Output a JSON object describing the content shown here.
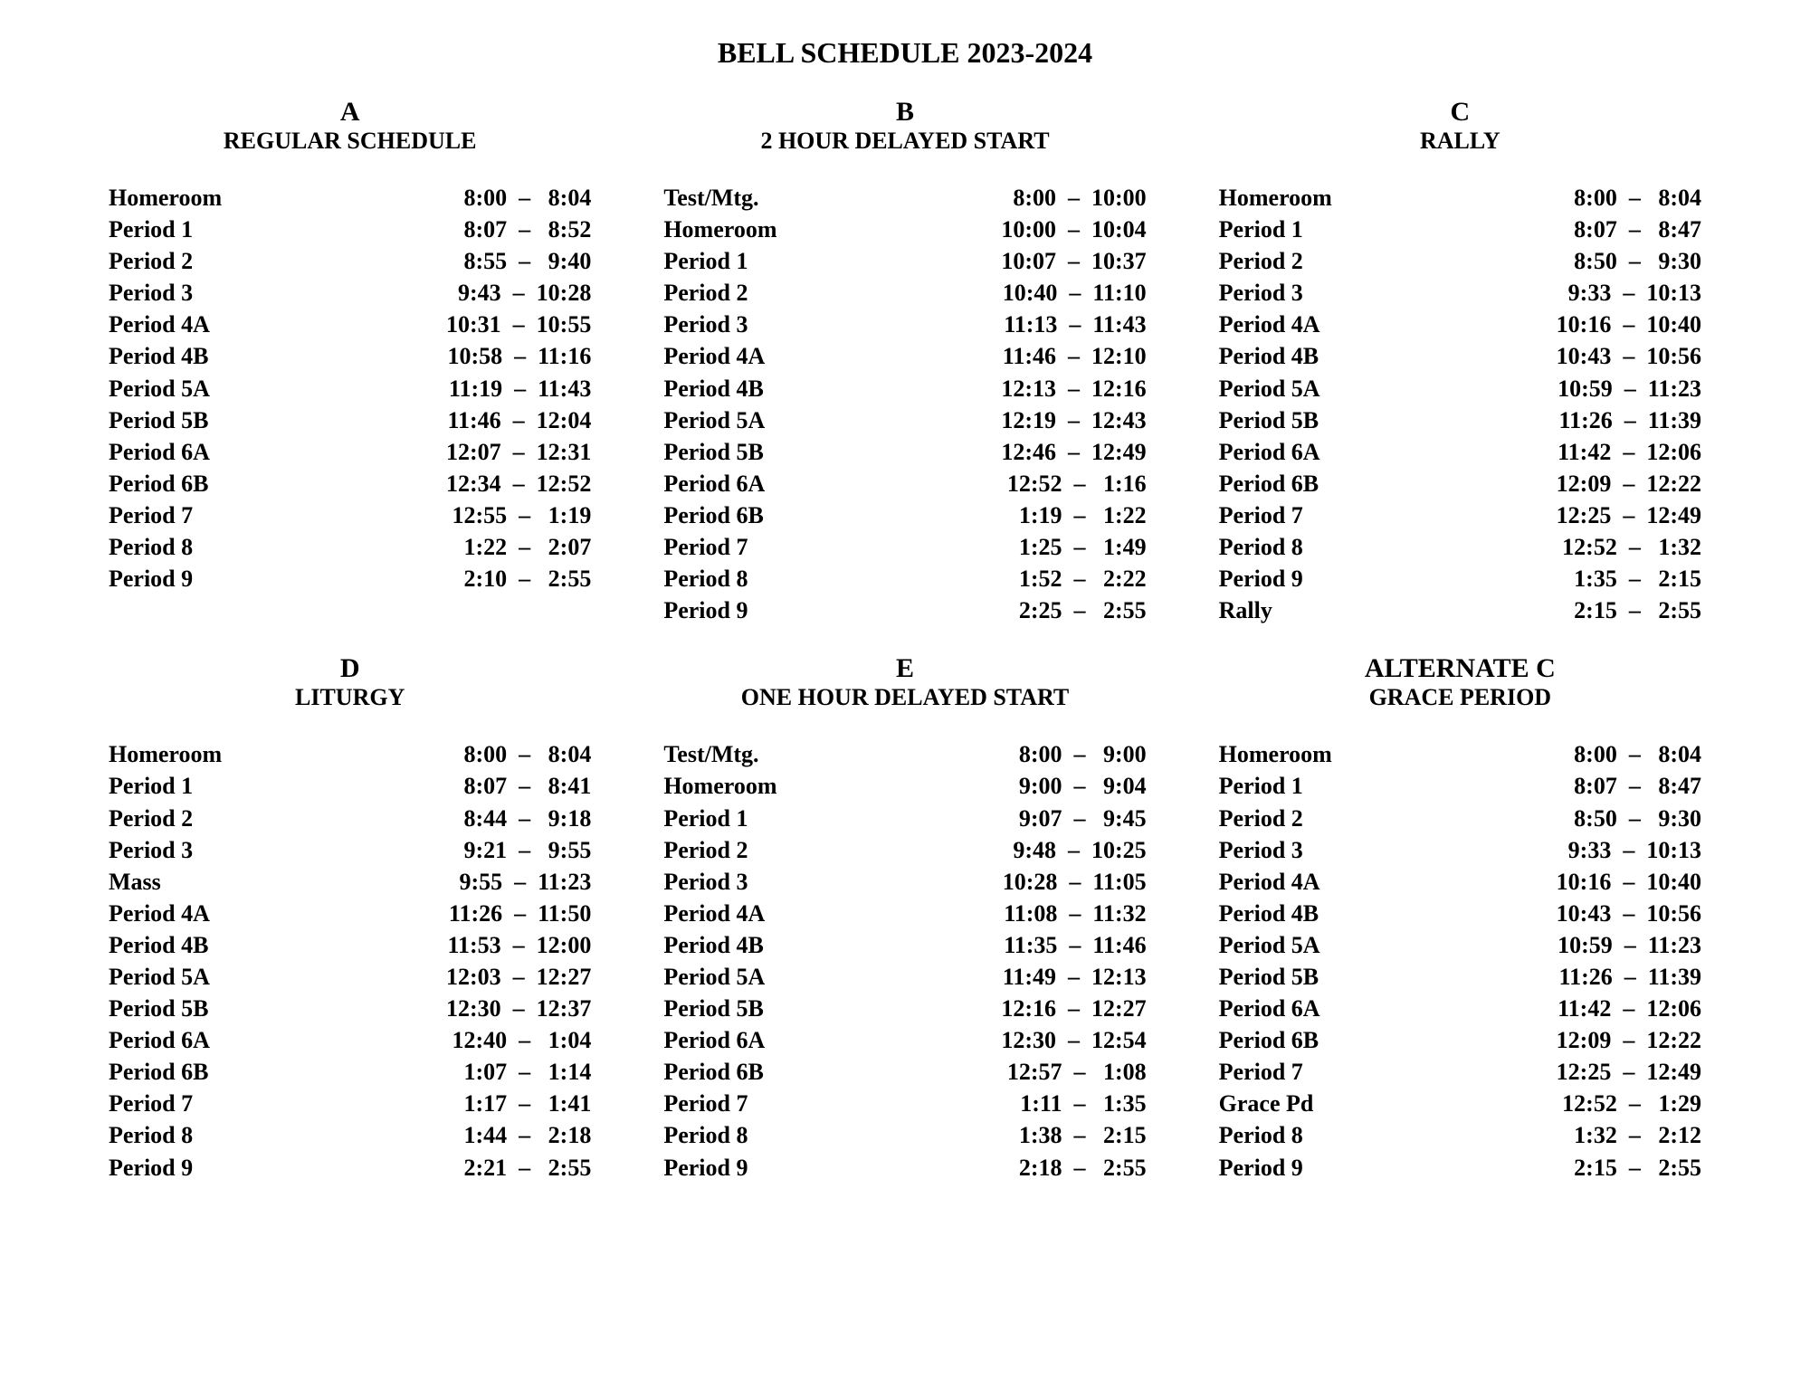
{
  "title": "BELL SCHEDULE 2023-2024",
  "schedules": [
    {
      "letter": "A",
      "name": "REGULAR SCHEDULE",
      "rows": [
        {
          "label": "Homeroom",
          "start": "8:00",
          "end": "8:04"
        },
        {
          "label": "Period 1",
          "start": "8:07",
          "end": "8:52"
        },
        {
          "label": "Period 2",
          "start": "8:55",
          "end": "9:40"
        },
        {
          "label": "Period 3",
          "start": "9:43",
          "end": "10:28"
        },
        {
          "label": "Period 4A",
          "start": "10:31",
          "end": "10:55"
        },
        {
          "label": "Period 4B",
          "start": "10:58",
          "end": "11:16"
        },
        {
          "label": "Period 5A",
          "start": "11:19",
          "end": "11:43"
        },
        {
          "label": "Period 5B",
          "start": "11:46",
          "end": "12:04"
        },
        {
          "label": "Period 6A",
          "start": "12:07",
          "end": "12:31"
        },
        {
          "label": "Period 6B",
          "start": "12:34",
          "end": "12:52"
        },
        {
          "label": "Period 7",
          "start": "12:55",
          "end": "1:19"
        },
        {
          "label": "Period 8",
          "start": "1:22",
          "end": "2:07"
        },
        {
          "label": "Period 9",
          "start": "2:10",
          "end": "2:55"
        }
      ]
    },
    {
      "letter": "B",
      "name": "2 HOUR DELAYED START",
      "rows": [
        {
          "label": "Test/Mtg.",
          "start": "8:00",
          "end": "10:00"
        },
        {
          "label": "Homeroom",
          "start": "10:00",
          "end": "10:04"
        },
        {
          "label": "Period 1",
          "start": "10:07",
          "end": "10:37"
        },
        {
          "label": "Period 2",
          "start": "10:40",
          "end": "11:10"
        },
        {
          "label": "Period 3",
          "start": "11:13",
          "end": "11:43"
        },
        {
          "label": "Period 4A",
          "start": "11:46",
          "end": "12:10"
        },
        {
          "label": "Period 4B",
          "start": "12:13",
          "end": "12:16"
        },
        {
          "label": "Period 5A",
          "start": "12:19",
          "end": "12:43"
        },
        {
          "label": "Period 5B",
          "start": "12:46",
          "end": "12:49"
        },
        {
          "label": "Period 6A",
          "start": "12:52",
          "end": "1:16"
        },
        {
          "label": "Period 6B",
          "start": "1:19",
          "end": "1:22"
        },
        {
          "label": "Period 7",
          "start": "1:25",
          "end": "1:49"
        },
        {
          "label": "Period 8",
          "start": "1:52",
          "end": "2:22"
        },
        {
          "label": "Period 9",
          "start": "2:25",
          "end": "2:55"
        }
      ]
    },
    {
      "letter": "C",
      "name": "RALLY",
      "rows": [
        {
          "label": "Homeroom",
          "start": "8:00",
          "end": "8:04"
        },
        {
          "label": "Period 1",
          "start": "8:07",
          "end": "8:47"
        },
        {
          "label": "Period 2",
          "start": "8:50",
          "end": "9:30"
        },
        {
          "label": "Period 3",
          "start": "9:33",
          "end": "10:13"
        },
        {
          "label": "Period 4A",
          "start": "10:16",
          "end": "10:40"
        },
        {
          "label": "Period 4B",
          "start": "10:43",
          "end": "10:56"
        },
        {
          "label": "Period 5A",
          "start": "10:59",
          "end": "11:23"
        },
        {
          "label": "Period 5B",
          "start": "11:26",
          "end": "11:39"
        },
        {
          "label": "Period 6A",
          "start": "11:42",
          "end": "12:06"
        },
        {
          "label": "Period 6B",
          "start": "12:09",
          "end": "12:22"
        },
        {
          "label": "Period 7",
          "start": "12:25",
          "end": "12:49"
        },
        {
          "label": "Period 8",
          "start": "12:52",
          "end": "1:32"
        },
        {
          "label": "Period 9",
          "start": "1:35",
          "end": "2:15"
        },
        {
          "label": "Rally",
          "start": "2:15",
          "end": "2:55"
        }
      ]
    },
    {
      "letter": "D",
      "name": "LITURGY",
      "rows": [
        {
          "label": "Homeroom",
          "start": "8:00",
          "end": "8:04"
        },
        {
          "label": "Period 1",
          "start": "8:07",
          "end": "8:41"
        },
        {
          "label": "Period 2",
          "start": "8:44",
          "end": "9:18"
        },
        {
          "label": "Period 3",
          "start": "9:21",
          "end": "9:55"
        },
        {
          "label": "Mass",
          "start": "9:55",
          "end": "11:23"
        },
        {
          "label": "Period 4A",
          "start": "11:26",
          "end": "11:50"
        },
        {
          "label": "Period 4B",
          "start": "11:53",
          "end": "12:00"
        },
        {
          "label": "Period 5A",
          "start": "12:03",
          "end": "12:27"
        },
        {
          "label": "Period 5B",
          "start": "12:30",
          "end": "12:37"
        },
        {
          "label": "Period 6A",
          "start": "12:40",
          "end": "1:04"
        },
        {
          "label": "Period 6B",
          "start": "1:07",
          "end": "1:14"
        },
        {
          "label": "Period 7",
          "start": "1:17",
          "end": "1:41"
        },
        {
          "label": "Period 8",
          "start": "1:44",
          "end": "2:18"
        },
        {
          "label": "Period 9",
          "start": "2:21",
          "end": "2:55"
        }
      ]
    },
    {
      "letter": "E",
      "name": "ONE HOUR DELAYED START",
      "rows": [
        {
          "label": "Test/Mtg.",
          "start": "8:00",
          "end": "9:00"
        },
        {
          "label": "Homeroom",
          "start": "9:00",
          "end": "9:04"
        },
        {
          "label": "Period 1",
          "start": "9:07",
          "end": "9:45"
        },
        {
          "label": "Period 2",
          "start": "9:48",
          "end": "10:25"
        },
        {
          "label": "Period 3",
          "start": "10:28",
          "end": "11:05"
        },
        {
          "label": "Period 4A",
          "start": "11:08",
          "end": "11:32"
        },
        {
          "label": "Period 4B",
          "start": "11:35",
          "end": "11:46"
        },
        {
          "label": "Period 5A",
          "start": "11:49",
          "end": "12:13"
        },
        {
          "label": "Period 5B",
          "start": "12:16",
          "end": "12:27"
        },
        {
          "label": "Period 6A",
          "start": "12:30",
          "end": "12:54"
        },
        {
          "label": "Period 6B",
          "start": "12:57",
          "end": "1:08"
        },
        {
          "label": "Period 7",
          "start": "1:11",
          "end": "1:35"
        },
        {
          "label": "Period 8",
          "start": "1:38",
          "end": "2:15"
        },
        {
          "label": "Period 9",
          "start": "2:18",
          "end": "2:55"
        }
      ]
    },
    {
      "letter": "ALTERNATE C",
      "name": "GRACE PERIOD",
      "rows": [
        {
          "label": "Homeroom",
          "start": "8:00",
          "end": "8:04"
        },
        {
          "label": "Period 1",
          "start": "8:07",
          "end": "8:47"
        },
        {
          "label": "Period 2",
          "start": "8:50",
          "end": "9:30"
        },
        {
          "label": "Period 3",
          "start": "9:33",
          "end": "10:13"
        },
        {
          "label": "Period 4A",
          "start": "10:16",
          "end": "10:40"
        },
        {
          "label": "Period 4B",
          "start": "10:43",
          "end": "10:56"
        },
        {
          "label": "Period 5A",
          "start": "10:59",
          "end": "11:23"
        },
        {
          "label": "Period 5B",
          "start": "11:26",
          "end": "11:39"
        },
        {
          "label": "Period 6A",
          "start": "11:42",
          "end": "12:06"
        },
        {
          "label": "Period 6B",
          "start": "12:09",
          "end": "12:22"
        },
        {
          "label": "Period 7",
          "start": "12:25",
          "end": "12:49"
        },
        {
          "label": "Grace Pd",
          "start": "12:52",
          "end": "1:29"
        },
        {
          "label": "Period 8",
          "start": "1:32",
          "end": "2:12"
        },
        {
          "label": "Period 9",
          "start": "2:15",
          "end": "2:55"
        }
      ]
    }
  ]
}
